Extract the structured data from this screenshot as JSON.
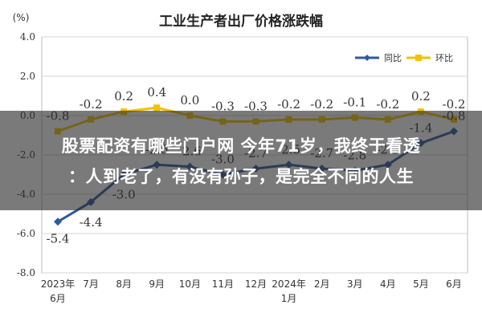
{
  "chart_data": {
    "type": "line",
    "title": "工业生产者出厂价格涨跌幅",
    "ylabel": "(%)",
    "ylim": [
      -8.0,
      4.0
    ],
    "yticks": [
      "4.0",
      "2.0",
      "0.0",
      "-2.0",
      "-4.0",
      "-6.0",
      "-8.0"
    ],
    "categories": [
      "2023年\n6月",
      "7月",
      "8月",
      "9月",
      "10月",
      "11月",
      "12月",
      "2024年\n1月",
      "2月",
      "3月",
      "4月",
      "5月",
      "6月"
    ],
    "legend_position": "top-right",
    "grid": true,
    "series": [
      {
        "name": "同比",
        "color": "#2e5a9e",
        "values": [
          -5.4,
          -4.4,
          -3.0,
          -2.5,
          -2.6,
          -3.0,
          -2.7,
          -2.5,
          -2.7,
          -2.8,
          -2.5,
          -1.4,
          -0.8
        ],
        "labels": [
          "-5.4",
          "-4.4",
          "-3.0",
          "-2.5",
          "-2.6",
          "-3.0",
          "-2.7",
          "-2.5",
          "-2.7",
          "-2.8",
          "-2.5",
          "-1.4",
          "-0.8"
        ]
      },
      {
        "name": "环比",
        "color": "#f2c200",
        "values": [
          -0.8,
          -0.2,
          0.2,
          0.4,
          0.0,
          -0.3,
          -0.3,
          -0.2,
          -0.2,
          -0.1,
          -0.2,
          0.2,
          -0.2
        ],
        "labels": [
          "-0.8",
          "-0.2",
          "0.2",
          "0.4",
          "0.0",
          "-0.3",
          "-0.3",
          "-0.2",
          "-0.2",
          "-0.1",
          "-0.2",
          "0.2",
          "-0.2"
        ]
      }
    ]
  },
  "overlay": {
    "line1": "股票配资有哪些门户网 今年71岁，我终于看透",
    "line2": "：人到老了，有没有孙子，是完全不同的人生"
  }
}
